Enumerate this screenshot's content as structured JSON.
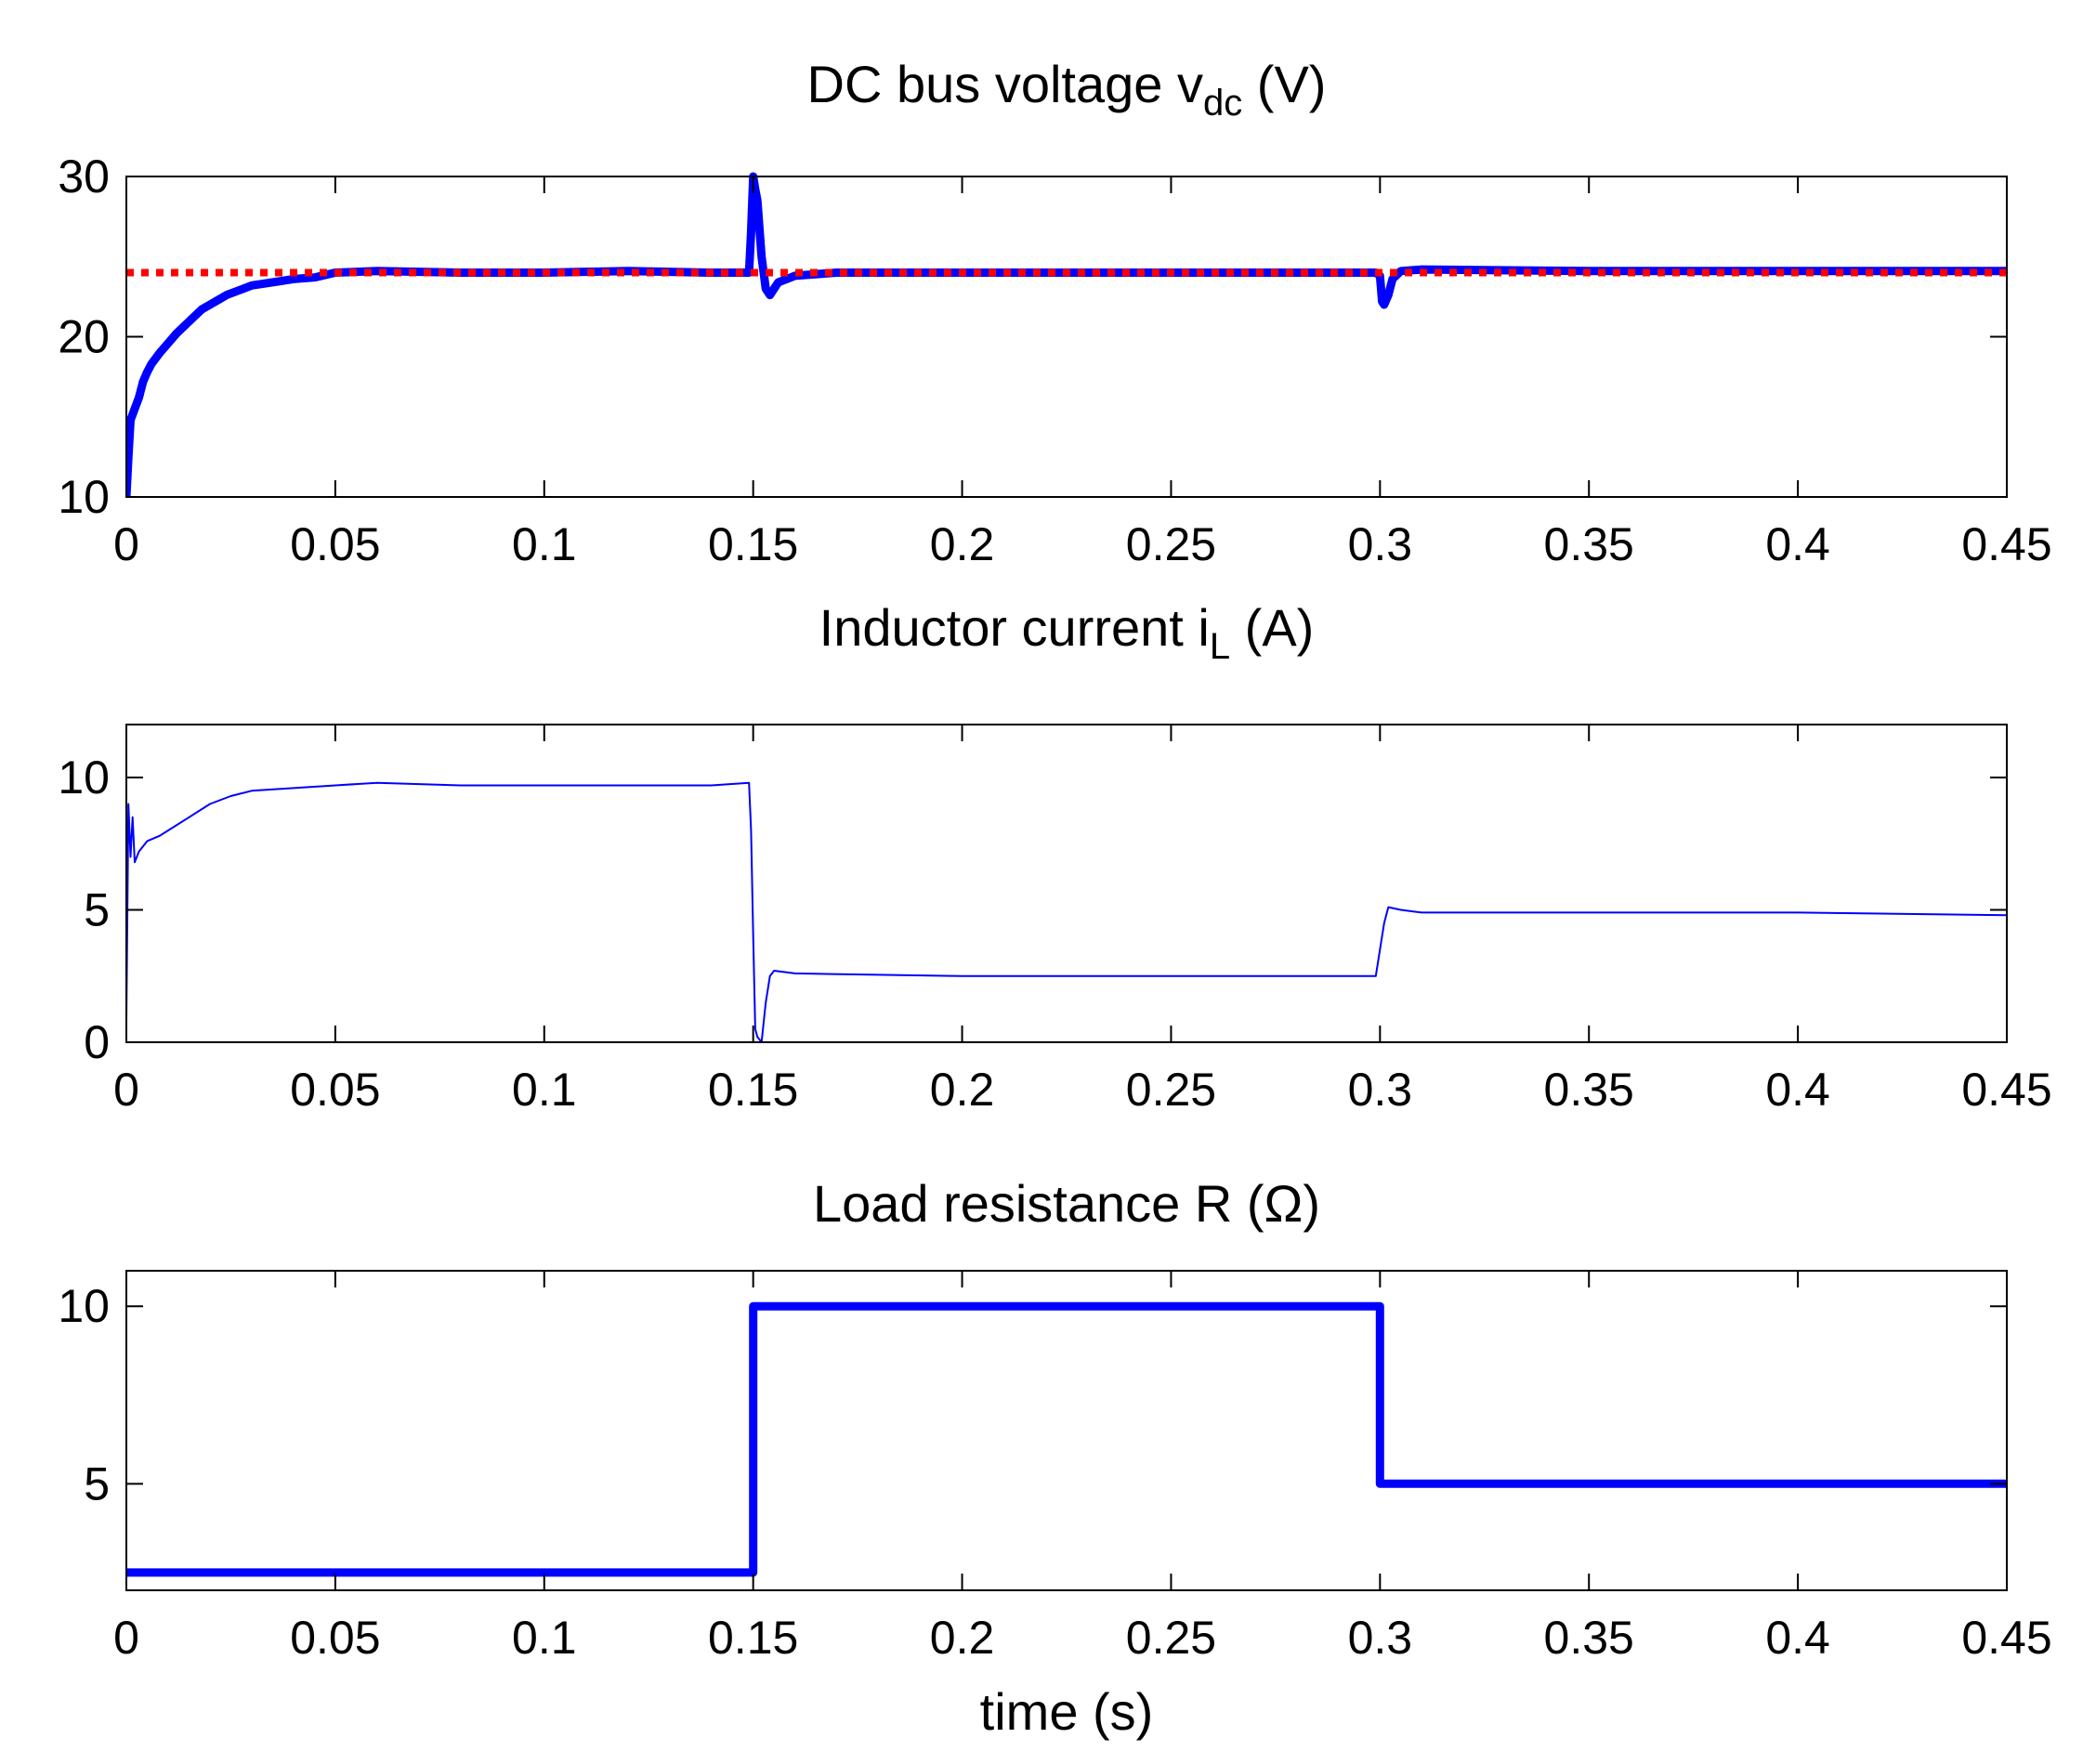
{
  "chart_data": [
    {
      "type": "line",
      "title": "DC bus voltage v",
      "title_subscript": "dc",
      "title_suffix": " (V)",
      "xlabel": "",
      "ylabel": "",
      "xlim": [
        0,
        0.45
      ],
      "ylim": [
        10,
        30
      ],
      "xticks": [
        0,
        0.05,
        0.1,
        0.15,
        0.2,
        0.25,
        0.3,
        0.35,
        0.4,
        0.45
      ],
      "yticks": [
        10,
        20,
        30
      ],
      "grid": false,
      "series": [
        {
          "color": "#0000ff",
          "style": "solid-thick",
          "x": [
            0,
            0.0005,
            0.001,
            0.002,
            0.003,
            0.004,
            0.005,
            0.006,
            0.008,
            0.01,
            0.012,
            0.014,
            0.016,
            0.018,
            0.02,
            0.022,
            0.024,
            0.026,
            0.028,
            0.03,
            0.035,
            0.04,
            0.045,
            0.05,
            0.06,
            0.08,
            0.1,
            0.12,
            0.14,
            0.149,
            0.1495,
            0.15,
            0.1505,
            0.151,
            0.152,
            0.153,
            0.154,
            0.156,
            0.16,
            0.17,
            0.2,
            0.25,
            0.299,
            0.3,
            0.3005,
            0.301,
            0.302,
            0.303,
            0.305,
            0.31,
            0.35,
            0.4,
            0.45
          ],
          "y": [
            10,
            12.5,
            14.8,
            15.5,
            16.2,
            17.2,
            17.8,
            18.3,
            19.0,
            19.6,
            20.2,
            20.7,
            21.2,
            21.7,
            22.0,
            22.3,
            22.6,
            22.8,
            23.0,
            23.2,
            23.4,
            23.6,
            23.7,
            24.0,
            24.1,
            24.0,
            24.0,
            24.1,
            24.0,
            24.0,
            26.5,
            30.0,
            29.2,
            28.5,
            25.0,
            23.0,
            22.6,
            23.4,
            23.8,
            24.0,
            24.0,
            24.0,
            24.0,
            23.8,
            22.2,
            22.0,
            22.6,
            23.6,
            24.1,
            24.2,
            24.1,
            24.1,
            24.1
          ]
        },
        {
          "color": "#ff0000",
          "style": "dotted",
          "x": [
            0,
            0.45
          ],
          "y": [
            24,
            24
          ]
        }
      ]
    },
    {
      "type": "line",
      "title": "Inductor current i",
      "title_subscript": "L",
      "title_suffix": " (A)",
      "xlabel": "",
      "ylabel": "",
      "xlim": [
        0,
        0.45
      ],
      "ylim": [
        0,
        12
      ],
      "xticks": [
        0,
        0.05,
        0.1,
        0.15,
        0.2,
        0.25,
        0.3,
        0.35,
        0.4,
        0.45
      ],
      "yticks": [
        0,
        5,
        10
      ],
      "grid": false,
      "series": [
        {
          "color": "#0000ff",
          "style": "solid-thin",
          "x": [
            0,
            0.0005,
            0.001,
            0.0015,
            0.002,
            0.003,
            0.005,
            0.008,
            0.01,
            0.015,
            0.02,
            0.025,
            0.03,
            0.04,
            0.05,
            0.06,
            0.08,
            0.1,
            0.12,
            0.14,
            0.149,
            0.1495,
            0.15,
            0.1505,
            0.151,
            0.152,
            0.153,
            0.154,
            0.155,
            0.16,
            0.2,
            0.25,
            0.299,
            0.3,
            0.301,
            0.302,
            0.305,
            0.31,
            0.35,
            0.4,
            0.45
          ],
          "y": [
            0.8,
            9.0,
            7.0,
            8.5,
            6.8,
            7.2,
            7.6,
            7.8,
            8.0,
            8.5,
            9.0,
            9.3,
            9.5,
            9.6,
            9.7,
            9.8,
            9.7,
            9.7,
            9.7,
            9.7,
            9.8,
            8.0,
            4.0,
            0.5,
            0.2,
            0.0,
            1.5,
            2.5,
            2.7,
            2.6,
            2.5,
            2.5,
            2.5,
            3.5,
            4.5,
            5.1,
            5.0,
            4.9,
            4.9,
            4.9,
            4.8
          ]
        }
      ]
    },
    {
      "type": "line",
      "title": "Load resistance R (",
      "title_symbol": "Ω",
      "title_suffix": ")",
      "xlabel": "time (s)",
      "ylabel": "",
      "xlim": [
        0,
        0.45
      ],
      "ylim": [
        2,
        11
      ],
      "xticks": [
        0,
        0.05,
        0.1,
        0.15,
        0.2,
        0.25,
        0.3,
        0.35,
        0.4,
        0.45
      ],
      "yticks": [
        5,
        10
      ],
      "grid": false,
      "series": [
        {
          "color": "#0000ff",
          "style": "solid-thick",
          "x": [
            0,
            0.15,
            0.15,
            0.3,
            0.3,
            0.45
          ],
          "y": [
            2.5,
            2.5,
            10,
            10,
            5,
            5
          ]
        }
      ]
    }
  ]
}
